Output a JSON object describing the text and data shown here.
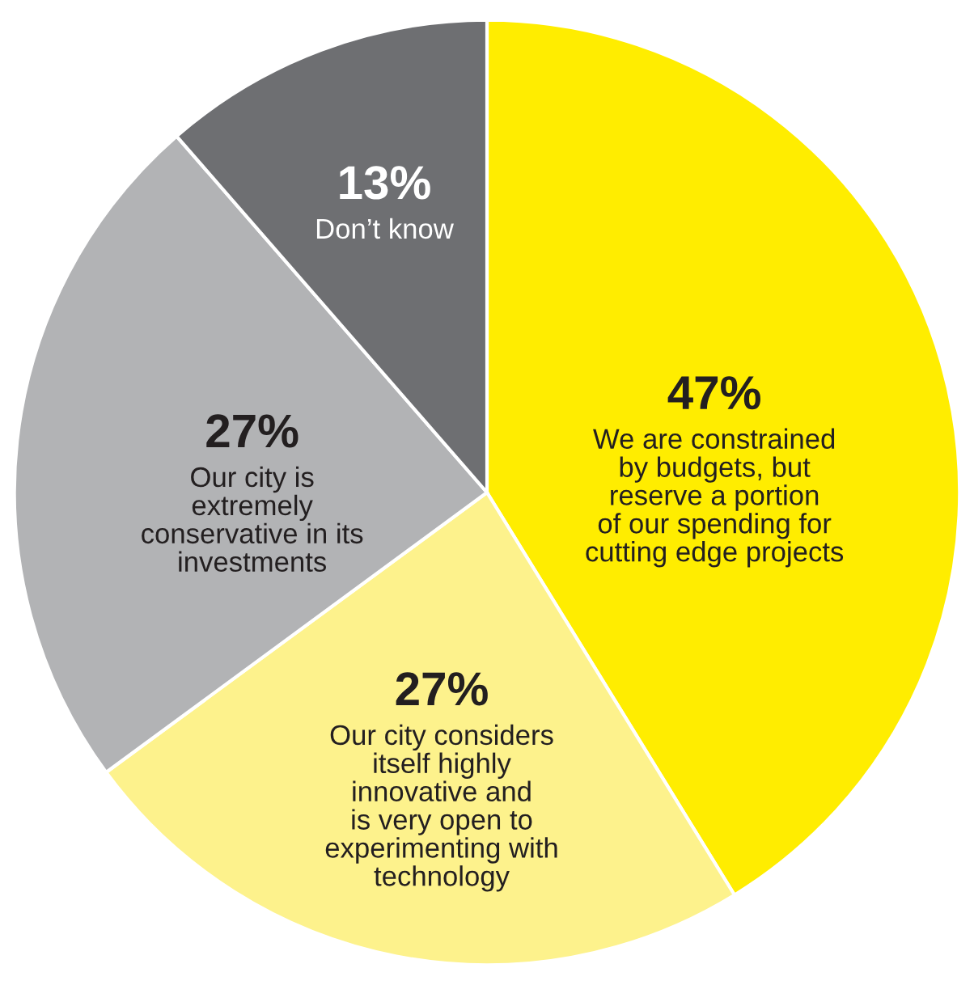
{
  "chart_data": {
    "type": "pie",
    "categories": [
      "We are constrained\nby budgets, but\nreserve a portion\nof our spending for\ncutting edge projects",
      "Our city considers\nitself highly\ninnovative and\nis very open to\nexperimenting with\ntechnology",
      "Our city is\nextremely\nconservative in its\ninvestments",
      "Don’t know"
    ],
    "values": [
      47,
      27,
      27,
      13
    ],
    "value_labels": [
      "47%",
      "27%",
      "27%",
      "13%"
    ],
    "colors": [
      "#ffed00",
      "#fdf28c",
      "#b2b3b5",
      "#6e6f72"
    ],
    "legend": false
  }
}
